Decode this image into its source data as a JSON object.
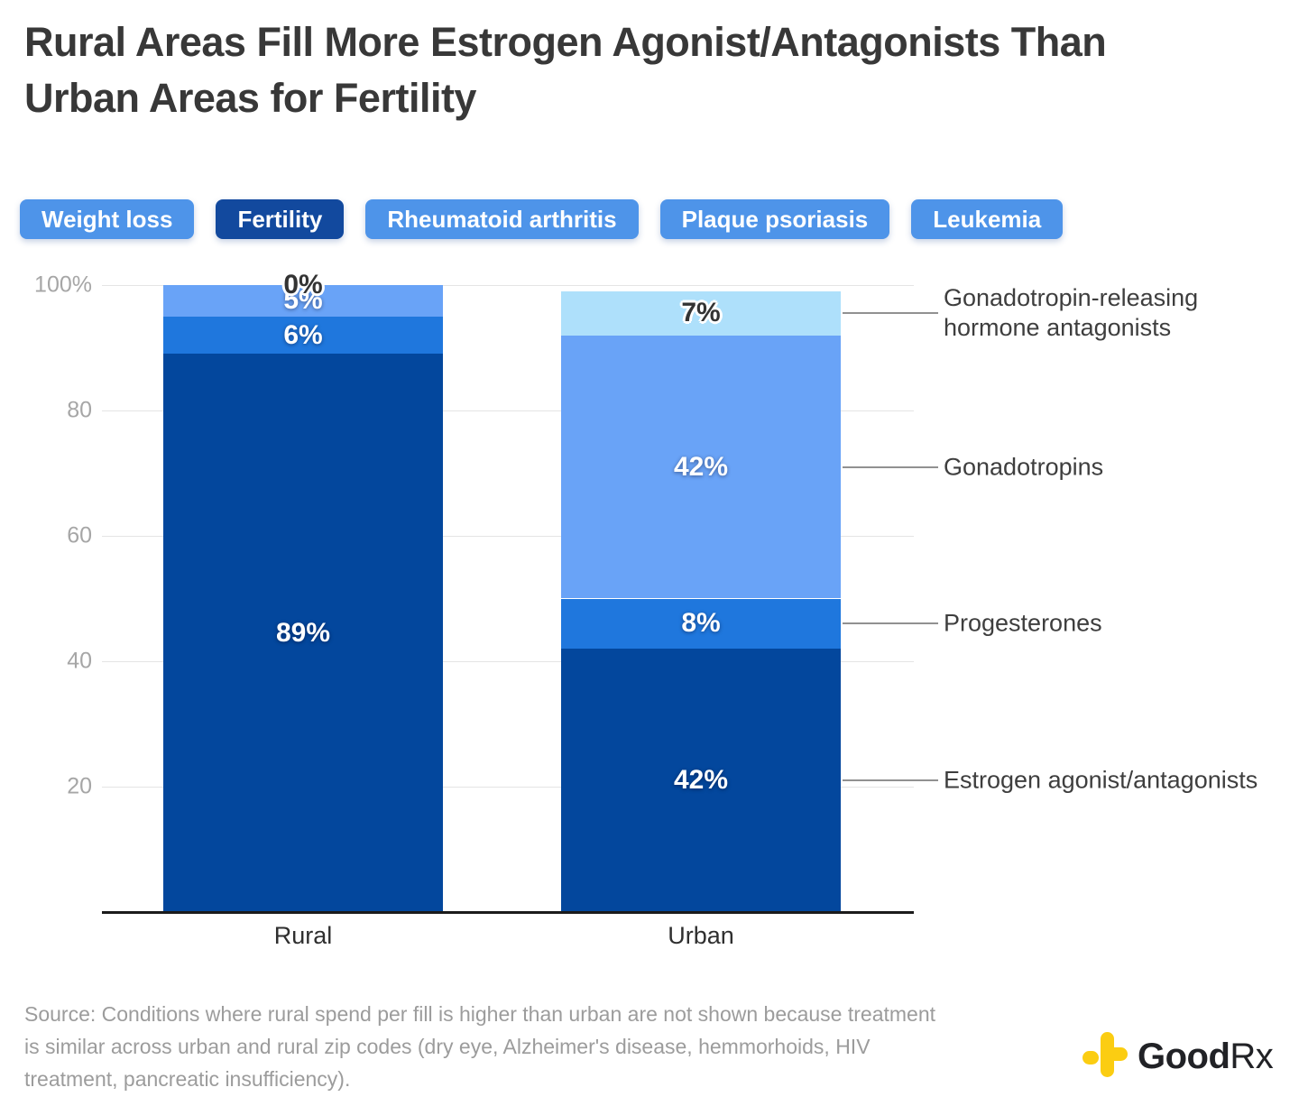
{
  "title": {
    "line1": "Rural Areas Fill More Estrogen Agonist/Antagonists Than",
    "line2": "Urban Areas for Fertility"
  },
  "tabs": {
    "items": [
      {
        "label": "Weight loss",
        "selected": false
      },
      {
        "label": "Fertility",
        "selected": true
      },
      {
        "label": "Rheumatoid arthritis",
        "selected": false
      },
      {
        "label": "Plaque psoriasis",
        "selected": false
      },
      {
        "label": "Leukemia",
        "selected": false
      }
    ]
  },
  "colors": {
    "tab_blue": "#4e94e9",
    "tab_selected_navy": "#12499e",
    "navy": "#03479d",
    "bright_blue": "#1f77dd",
    "medium_blue": "#69a3f7",
    "light_blue": "#aee0fb",
    "gridline": "#e4e4e4",
    "leader_line": "#919191",
    "goodrx_yellow": "#fbcd12"
  },
  "chart_data": {
    "type": "bar",
    "stacked": true,
    "categories": [
      "Rural",
      "Urban"
    ],
    "series": [
      {
        "name": "Estrogen agonist/antagonists",
        "values": [
          89,
          42
        ],
        "color": "#03479d",
        "label_style": "white",
        "annotation_lines": [
          "Estrogen agonist/antagonists"
        ]
      },
      {
        "name": "Progesterones",
        "values": [
          6,
          8
        ],
        "color": "#1f77dd",
        "label_style": "white",
        "annotation_lines": [
          "Progesterones"
        ]
      },
      {
        "name": "Gonadotropins",
        "values": [
          5,
          42
        ],
        "color": "#69a3f7",
        "label_style": "white",
        "annotation_lines": [
          "Gonadotropins"
        ]
      },
      {
        "name": "Gonadotropin-releasing hormone antagonists",
        "values": [
          0,
          7
        ],
        "color": "#aee0fb",
        "label_style": "dark",
        "annotation_lines": [
          "Gonadotropin-releasing",
          "hormone antagonists"
        ]
      }
    ],
    "yticks": [
      20,
      40,
      60,
      80,
      100
    ],
    "ytick_labels": [
      "20",
      "40",
      "60",
      "80",
      "100%"
    ],
    "ylim": [
      0,
      100
    ],
    "value_suffix": "%",
    "grid": true,
    "annotations_on": "Urban"
  },
  "source": {
    "line1": "Source: Conditions where rural spend per fill is higher than urban are not shown because treatment",
    "line2": "is similar across urban and rural zip codes (dry eye, Alzheimer's disease, hemmorhoids, HIV",
    "line3": "treatment, pancreatic insufficiency)."
  },
  "logo": {
    "text_bold": "Good",
    "text_light": "Rx"
  }
}
